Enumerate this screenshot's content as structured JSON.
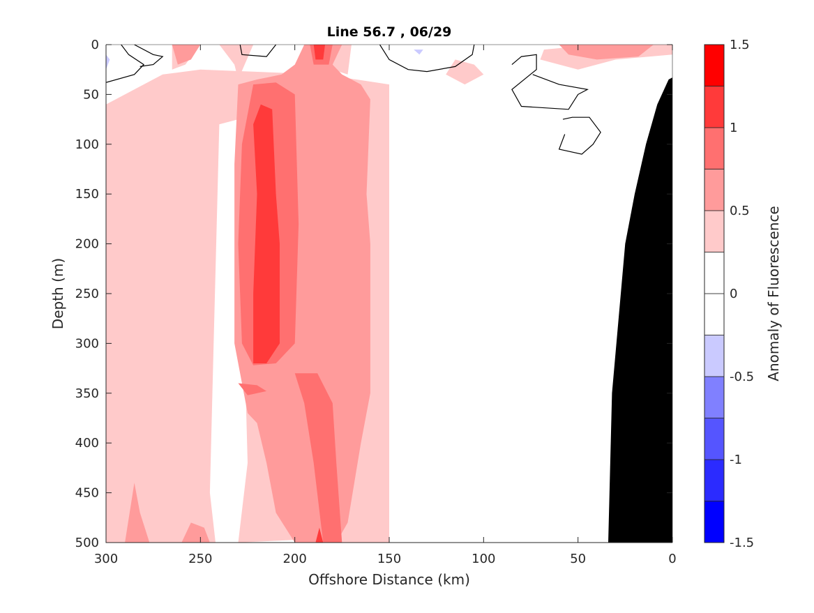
{
  "chart_data": {
    "type": "heatmap",
    "subtype": "filled-contour",
    "title": "Line 56.7 , 06/29",
    "xlabel": "Offshore Distance (km)",
    "ylabel": "Depth (m)",
    "xlim": [
      300,
      0
    ],
    "x_reversed": true,
    "ylim": [
      0,
      500
    ],
    "y_reversed": true,
    "x_ticks": [
      300,
      250,
      200,
      150,
      100,
      50,
      0
    ],
    "y_ticks": [
      0,
      50,
      100,
      150,
      200,
      250,
      300,
      350,
      400,
      450,
      500
    ],
    "grid": false,
    "colorbar": {
      "label": "Anomaly of Fluorescence",
      "range": [
        -1.5,
        1.5
      ],
      "tick_values": [
        -1.5,
        -1,
        -0.5,
        0,
        0.5,
        1,
        1.5
      ],
      "tick_labels": [
        "-1.5",
        "-1",
        "-0.5",
        "0",
        "0.5",
        "1",
        "1.5"
      ],
      "levels": [
        {
          "min": -1.5,
          "max": -1.25,
          "color": "#0000ff"
        },
        {
          "min": -1.25,
          "max": -1.0,
          "color": "#2b2bff"
        },
        {
          "min": -1.0,
          "max": -0.75,
          "color": "#5555ff"
        },
        {
          "min": -0.75,
          "max": -0.5,
          "color": "#8080ff"
        },
        {
          "min": -0.5,
          "max": -0.25,
          "color": "#cacaff"
        },
        {
          "min": -0.25,
          "max": 0.0,
          "color": "#ffffff"
        },
        {
          "min": 0.0,
          "max": 0.25,
          "color": "#ffffff"
        },
        {
          "min": 0.25,
          "max": 0.5,
          "color": "#ffcaca"
        },
        {
          "min": 0.5,
          "max": 0.75,
          "color": "#ff9b9b"
        },
        {
          "min": 0.75,
          "max": 1.0,
          "color": "#ff7070"
        },
        {
          "min": 1.0,
          "max": 1.25,
          "color": "#ff3a3a"
        },
        {
          "min": 1.25,
          "max": 1.5,
          "color": "#ff0000"
        }
      ]
    },
    "regions": [
      {
        "level": 0.25,
        "points": [
          [
            300,
            60
          ],
          [
            270,
            30
          ],
          [
            250,
            25
          ],
          [
            185,
            30
          ],
          [
            150,
            40
          ],
          [
            150,
            500
          ],
          [
            175,
            500
          ],
          [
            185,
            496
          ],
          [
            230,
            500
          ],
          [
            285,
            500
          ],
          [
            300,
            500
          ]
        ]
      },
      {
        "level": 0.25,
        "points": [
          [
            265,
            0
          ],
          [
            250,
            0
          ],
          [
            258,
            20
          ],
          [
            265,
            25
          ]
        ]
      },
      {
        "level": 0.25,
        "points": [
          [
            222,
            0
          ],
          [
            240,
            0
          ],
          [
            232,
            20
          ],
          [
            230,
            35
          ]
        ]
      },
      {
        "level": 0.25,
        "points": [
          [
            170,
            0
          ],
          [
            185,
            0
          ],
          [
            180,
            25
          ],
          [
            172,
            30
          ]
        ]
      },
      {
        "level": 0.25,
        "points": [
          [
            115,
            15
          ],
          [
            105,
            20
          ],
          [
            100,
            30
          ],
          [
            110,
            40
          ],
          [
            120,
            30
          ]
        ]
      },
      {
        "level": 0.25,
        "points": [
          [
            68,
            5
          ],
          [
            40,
            0
          ],
          [
            0,
            0
          ],
          [
            0,
            10
          ],
          [
            30,
            15
          ],
          [
            50,
            25
          ],
          [
            70,
            15
          ]
        ]
      },
      {
        "level": 0.0,
        "points": [
          [
            240,
            80
          ],
          [
            230,
            75
          ],
          [
            225,
            420
          ],
          [
            230,
            500
          ],
          [
            242,
            500
          ],
          [
            245,
            450
          ],
          [
            243,
            300
          ]
        ]
      },
      {
        "level": 0.5,
        "points": [
          [
            230,
            40
          ],
          [
            220,
            35
          ],
          [
            207,
            30
          ],
          [
            200,
            20
          ],
          [
            195,
            0
          ],
          [
            175,
            0
          ],
          [
            180,
            20
          ],
          [
            175,
            30
          ],
          [
            165,
            40
          ],
          [
            160,
            55
          ],
          [
            162,
            150
          ],
          [
            160,
            200
          ],
          [
            160,
            350
          ],
          [
            165,
            400
          ],
          [
            172,
            480
          ],
          [
            178,
            500
          ],
          [
            200,
            500
          ],
          [
            210,
            470
          ],
          [
            215,
            420
          ],
          [
            220,
            380
          ],
          [
            225,
            370
          ],
          [
            232,
            300
          ],
          [
            232,
            200
          ],
          [
            232,
            120
          ]
        ]
      },
      {
        "level": 0.5,
        "points": [
          [
            290,
            500
          ],
          [
            285,
            440
          ],
          [
            282,
            470
          ],
          [
            277,
            500
          ]
        ]
      },
      {
        "level": 0.5,
        "points": [
          [
            260,
            500
          ],
          [
            255,
            480
          ],
          [
            248,
            485
          ],
          [
            245,
            500
          ]
        ]
      },
      {
        "level": 0.5,
        "points": [
          [
            265,
            0
          ],
          [
            250,
            0
          ],
          [
            255,
            15
          ],
          [
            262,
            20
          ]
        ]
      },
      {
        "level": 0.5,
        "points": [
          [
            60,
            0
          ],
          [
            10,
            0
          ],
          [
            18,
            12
          ],
          [
            40,
            15
          ],
          [
            55,
            10
          ]
        ]
      },
      {
        "level": 0.75,
        "points": [
          [
            222,
            40
          ],
          [
            210,
            38
          ],
          [
            200,
            50
          ],
          [
            198,
            180
          ],
          [
            200,
            300
          ],
          [
            210,
            320
          ],
          [
            222,
            322
          ],
          [
            228,
            300
          ],
          [
            230,
            200
          ],
          [
            228,
            100
          ]
        ]
      },
      {
        "level": 0.75,
        "points": [
          [
            200,
            330
          ],
          [
            195,
            360
          ],
          [
            190,
            420
          ],
          [
            185,
            500
          ],
          [
            175,
            500
          ],
          [
            178,
            420
          ],
          [
            180,
            360
          ],
          [
            188,
            330
          ]
        ]
      },
      {
        "level": 0.75,
        "points": [
          [
            192,
            0
          ],
          [
            180,
            0
          ],
          [
            182,
            20
          ],
          [
            190,
            20
          ]
        ]
      },
      {
        "level": 0.75,
        "points": [
          [
            230,
            340
          ],
          [
            220,
            342
          ],
          [
            215,
            348
          ],
          [
            225,
            352
          ]
        ]
      },
      {
        "level": 1.0,
        "points": [
          [
            218,
            60
          ],
          [
            212,
            65
          ],
          [
            210,
            150
          ],
          [
            208,
            200
          ],
          [
            208,
            300
          ],
          [
            215,
            320
          ],
          [
            222,
            320
          ],
          [
            222,
            250
          ],
          [
            220,
            150
          ],
          [
            222,
            80
          ]
        ]
      },
      {
        "level": 1.0,
        "points": [
          [
            187,
            485
          ],
          [
            185,
            500
          ],
          [
            189,
            500
          ]
        ]
      },
      {
        "level": 1.0,
        "points": [
          [
            190,
            0
          ],
          [
            184,
            0
          ],
          [
            185,
            15
          ],
          [
            189,
            15
          ]
        ]
      },
      {
        "level": -0.25,
        "points": [
          [
            300,
            0
          ],
          [
            295,
            0
          ],
          [
            292,
            20
          ],
          [
            300,
            30
          ]
        ]
      },
      {
        "level": -0.25,
        "points": [
          [
            147,
            0
          ],
          [
            125,
            0
          ],
          [
            128,
            15
          ],
          [
            140,
            15
          ]
        ]
      },
      {
        "level": -0.5,
        "points": [
          [
            300,
            10
          ],
          [
            298,
            15
          ],
          [
            300,
            25
          ]
        ]
      },
      {
        "level": -0.5,
        "points": [
          [
            137,
            5
          ],
          [
            132,
            5
          ],
          [
            134,
            10
          ]
        ]
      }
    ],
    "contours": [
      {
        "level": 0,
        "points": [
          [
            300,
            38
          ],
          [
            285,
            30
          ],
          [
            280,
            20
          ],
          [
            288,
            10
          ],
          [
            292,
            0
          ]
        ]
      },
      {
        "level": 0,
        "points": [
          [
            285,
            0
          ],
          [
            275,
            10
          ],
          [
            270,
            12
          ],
          [
            275,
            20
          ],
          [
            282,
            22
          ]
        ]
      },
      {
        "level": 0,
        "points": [
          [
            229,
            0
          ],
          [
            228,
            10
          ],
          [
            215,
            12
          ],
          [
            210,
            0
          ]
        ]
      },
      {
        "level": 0,
        "points": [
          [
            155,
            0
          ],
          [
            150,
            15
          ],
          [
            140,
            25
          ],
          [
            130,
            27
          ],
          [
            115,
            22
          ],
          [
            106,
            10
          ],
          [
            105,
            0
          ]
        ]
      },
      {
        "level": 0,
        "points": [
          [
            85,
            20
          ],
          [
            80,
            12
          ],
          [
            72,
            10
          ],
          [
            72,
            25
          ],
          [
            85,
            45
          ],
          [
            80,
            62
          ],
          [
            55,
            65
          ],
          [
            50,
            50
          ],
          [
            45,
            45
          ],
          [
            60,
            40
          ],
          [
            74,
            30
          ]
        ]
      },
      {
        "level": 0,
        "points": [
          [
            58,
            75
          ],
          [
            53,
            73
          ],
          [
            44,
            73
          ],
          [
            38,
            88
          ],
          [
            42,
            100
          ],
          [
            48,
            110
          ],
          [
            60,
            105
          ],
          [
            57,
            90
          ]
        ]
      }
    ],
    "terrain": {
      "color": "#000000",
      "boundary": [
        [
          34,
          500
        ],
        [
          32,
          350
        ],
        [
          25,
          200
        ],
        [
          20,
          150
        ],
        [
          14,
          100
        ],
        [
          8,
          60
        ],
        [
          2,
          35
        ],
        [
          0,
          33
        ],
        [
          0,
          500
        ]
      ]
    }
  }
}
